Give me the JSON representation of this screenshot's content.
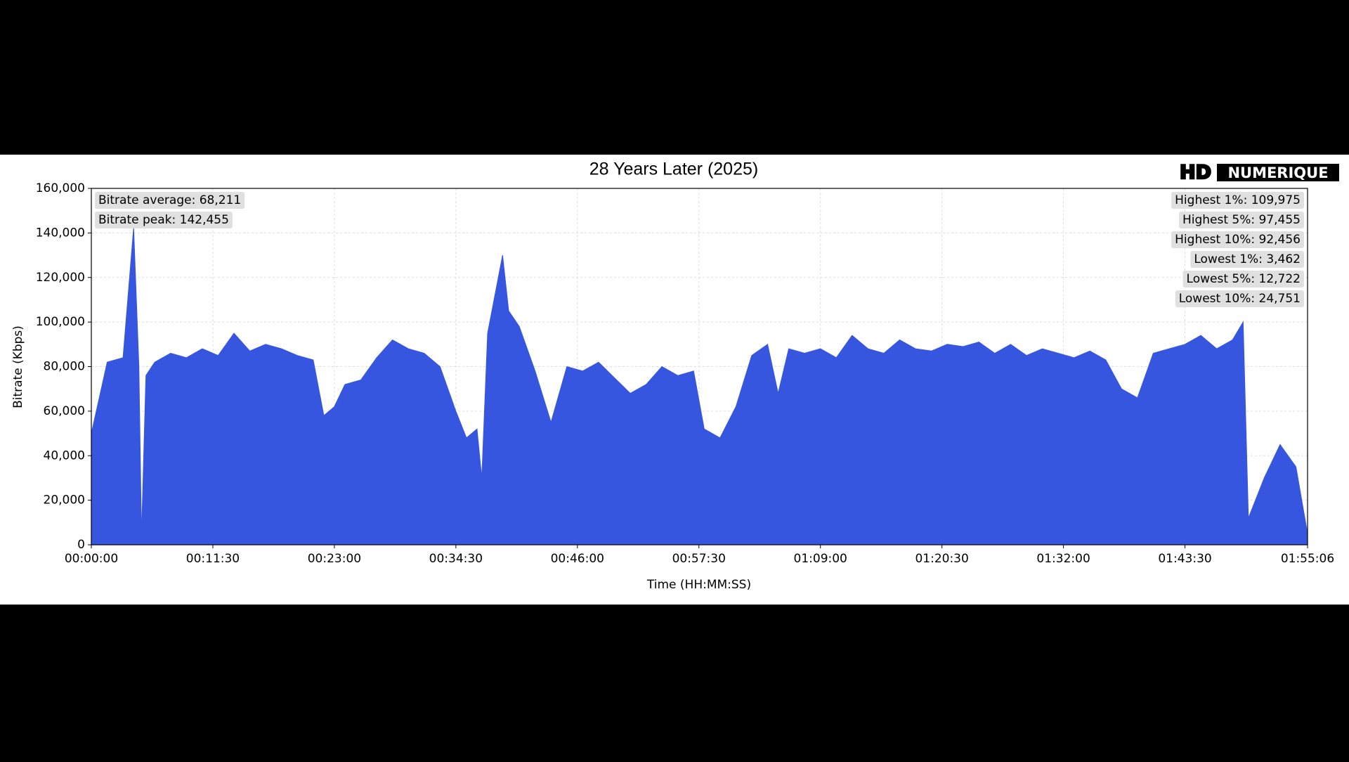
{
  "chart_data": {
    "type": "area",
    "title": "28 Years Later (2025)",
    "logo": [
      "HD",
      "NUMERIQUE"
    ],
    "x_label": "Time (HH:MM:SS)",
    "y_label": "Bitrate (Kbps)",
    "color": "#3656e0",
    "grid": true,
    "xlim": [
      0,
      6906
    ],
    "ylim": [
      0,
      160000
    ],
    "xticks": [
      {
        "value": 0,
        "label": "00:00:00"
      },
      {
        "value": 690,
        "label": "00:11:30"
      },
      {
        "value": 1380,
        "label": "00:23:00"
      },
      {
        "value": 2070,
        "label": "00:34:30"
      },
      {
        "value": 2760,
        "label": "00:46:00"
      },
      {
        "value": 3450,
        "label": "00:57:30"
      },
      {
        "value": 4140,
        "label": "01:09:00"
      },
      {
        "value": 4830,
        "label": "01:20:30"
      },
      {
        "value": 5520,
        "label": "01:32:00"
      },
      {
        "value": 6210,
        "label": "01:43:30"
      },
      {
        "value": 6906,
        "label": "01:55:06"
      }
    ],
    "yticks": [
      0,
      {
        "value": 20000,
        "label": "20,000"
      },
      {
        "value": 40000,
        "label": "40,000"
      },
      {
        "value": 60000,
        "label": "60,000"
      },
      {
        "value": 80000,
        "label": "80,000"
      },
      {
        "value": 100000,
        "label": "100,000"
      },
      {
        "value": 120000,
        "label": "120,000"
      },
      {
        "value": 140000,
        "label": "140,000"
      },
      {
        "value": 160000,
        "label": "160,000"
      }
    ],
    "x": [
      0,
      90,
      180,
      240,
      270,
      285,
      310,
      360,
      450,
      540,
      630,
      720,
      810,
      900,
      990,
      1080,
      1170,
      1260,
      1320,
      1380,
      1440,
      1530,
      1620,
      1710,
      1800,
      1890,
      1980,
      2070,
      2130,
      2190,
      2217,
      2250,
      2335,
      2370,
      2430,
      2520,
      2610,
      2700,
      2790,
      2880,
      2970,
      3060,
      3150,
      3240,
      3330,
      3420,
      3480,
      3570,
      3660,
      3750,
      3840,
      3900,
      3960,
      4050,
      4140,
      4230,
      4320,
      4410,
      4500,
      4590,
      4680,
      4770,
      4860,
      4950,
      5040,
      5130,
      5220,
      5310,
      5400,
      5490,
      5580,
      5670,
      5760,
      5850,
      5940,
      6030,
      6120,
      6210,
      6300,
      6390,
      6480,
      6540,
      6570,
      6660,
      6750,
      6840,
      6906
    ],
    "values": [
      50000,
      82000,
      84000,
      142455,
      80000,
      4000,
      76000,
      82000,
      86000,
      84000,
      88000,
      85000,
      95000,
      87000,
      90000,
      88000,
      85000,
      83000,
      58000,
      62000,
      72000,
      74000,
      84000,
      92000,
      88000,
      86000,
      80000,
      60000,
      48000,
      52000,
      30000,
      95000,
      130000,
      105000,
      98000,
      78000,
      55000,
      80000,
      78000,
      82000,
      75000,
      68000,
      72000,
      80000,
      76000,
      78000,
      52000,
      48000,
      62000,
      85000,
      90000,
      68000,
      88000,
      86000,
      88000,
      84000,
      94000,
      88000,
      86000,
      92000,
      88000,
      87000,
      90000,
      89000,
      91000,
      86000,
      90000,
      85000,
      88000,
      86000,
      84000,
      87000,
      83000,
      70000,
      66000,
      86000,
      88000,
      90000,
      94000,
      88000,
      92000,
      100000,
      12000,
      30000,
      45000,
      35000,
      5000
    ],
    "stats_left": [
      "Bitrate average: 68,211",
      "Bitrate peak: 142,455"
    ],
    "stats_right": [
      "Highest 1%: 109,975",
      "Highest 5%: 97,455",
      "Highest 10%: 92,456",
      "Lowest 1%: 3,462",
      "Lowest 5%: 12,722",
      "Lowest 10%: 24,751"
    ]
  }
}
